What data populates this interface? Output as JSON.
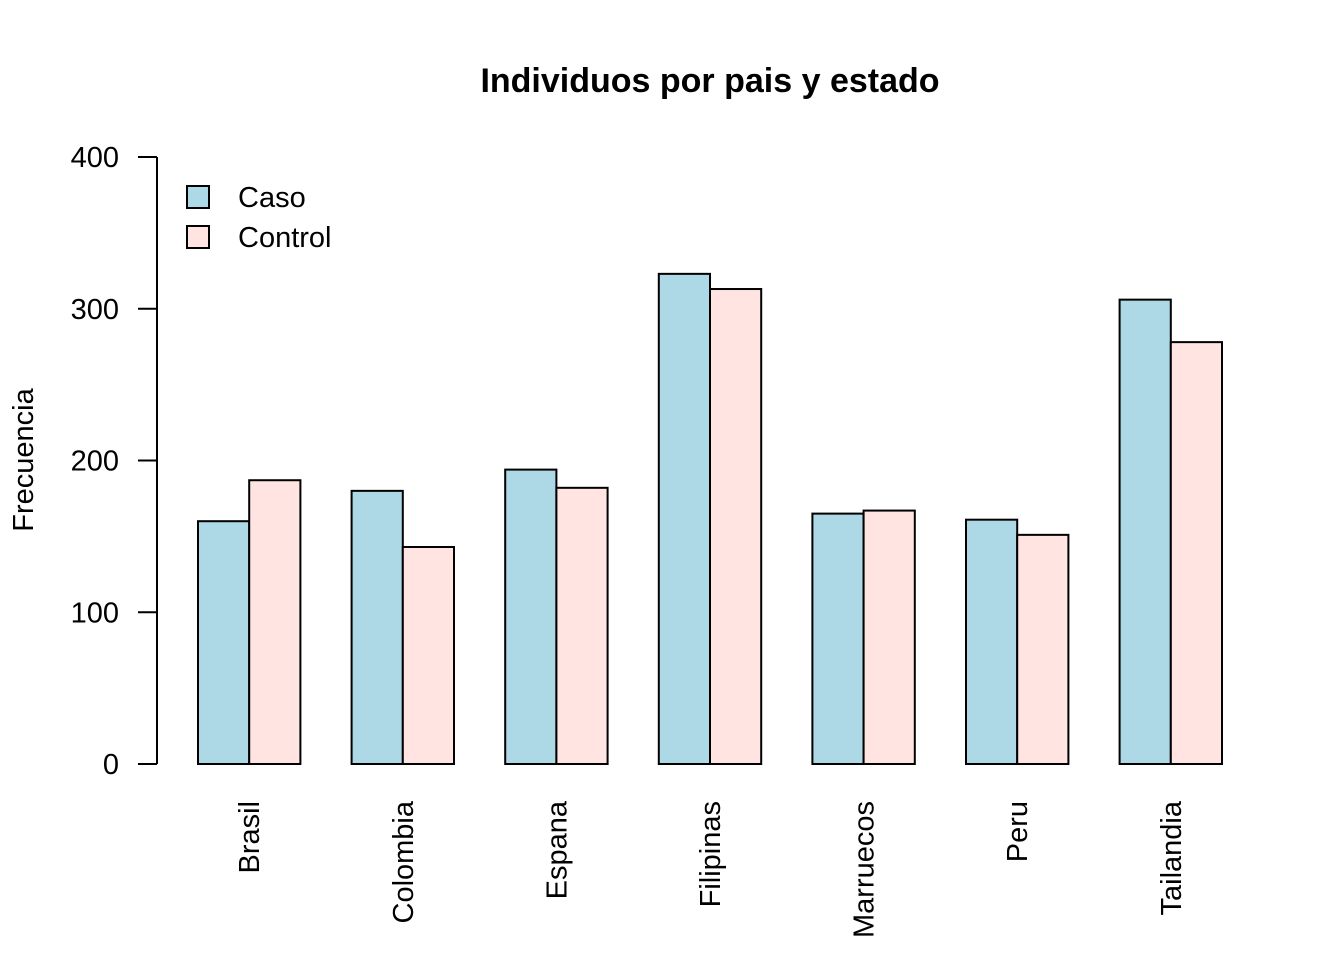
{
  "chart_data": {
    "type": "bar",
    "title": "Individuos por pais y estado",
    "xlabel": "",
    "ylabel": "Frecuencia",
    "ylim": [
      0,
      400
    ],
    "yticks": [
      "0",
      "100",
      "200",
      "300",
      "400"
    ],
    "categories": [
      "Brasil",
      "Colombia",
      "Espana",
      "Filipinas",
      "Marruecos",
      "Peru",
      "Tailandia"
    ],
    "series": [
      {
        "name": "Caso",
        "color": "#add8e6",
        "values": [
          160,
          180,
          194,
          323,
          165,
          161,
          306
        ]
      },
      {
        "name": "Control",
        "color": "#ffe4e1",
        "values": [
          187,
          143,
          182,
          313,
          167,
          151,
          278
        ]
      }
    ],
    "legend": "top-left",
    "grid": false
  }
}
